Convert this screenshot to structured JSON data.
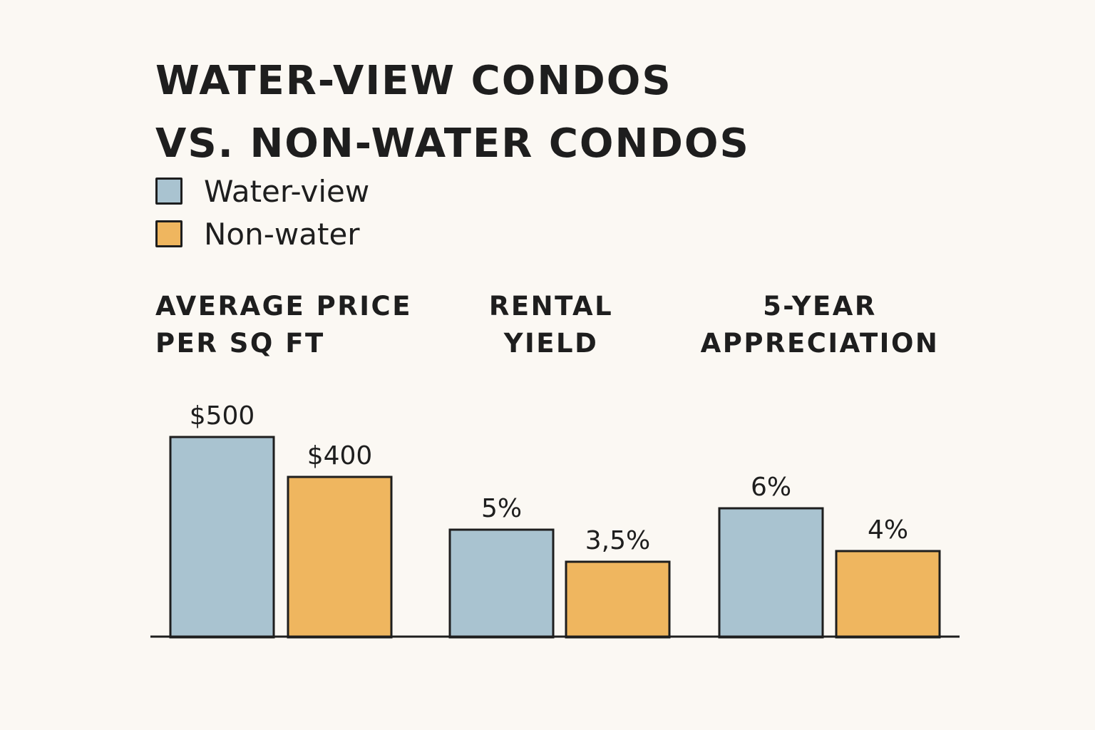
{
  "chart_data": {
    "type": "bar",
    "title": [
      "WATER-VIEW CONDOS",
      "VS. NON-WATER CONDOS"
    ],
    "legend": [
      {
        "name": "Water-view",
        "color": "#a9c3d0"
      },
      {
        "name": "Non-water",
        "color": "#efb65f"
      }
    ],
    "categories": [
      {
        "lines": [
          "AVERAGE PRICE",
          "PER SQ FT"
        ]
      },
      {
        "lines": [
          "RENTAL",
          "YIELD"
        ]
      },
      {
        "lines": [
          "5-YEAR",
          "APPRECIATION"
        ]
      }
    ],
    "series": [
      {
        "name": "Water-view",
        "values": [
          500,
          5,
          6
        ],
        "labels": [
          "$500",
          "5%",
          "6%"
        ]
      },
      {
        "name": "Non-water",
        "values": [
          400,
          3.5,
          4
        ],
        "labels": [
          "$400",
          "3,5%",
          "4%"
        ]
      }
    ],
    "axis_color": "#1e1e1e"
  }
}
